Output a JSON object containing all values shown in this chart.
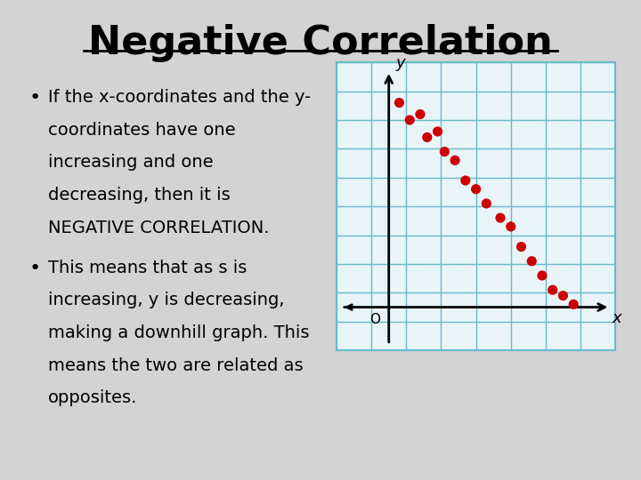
{
  "title": "Negative Correlation",
  "background_color": "#d3d3d3",
  "title_fontsize": 32,
  "bullet1_lines": [
    "If the x-coordinates and the y-",
    "coordinates have one",
    "increasing and one",
    "decreasing, then it is",
    "NEGATIVE CORRELATION."
  ],
  "bullet2_lines": [
    "This means that as s is",
    "increasing, y is decreasing,",
    "making a downhill graph. This",
    "means the two are related as",
    "opposites."
  ],
  "scatter_x": [
    1.8,
    2.1,
    2.4,
    2.6,
    2.9,
    3.1,
    3.4,
    3.7,
    4.0,
    4.3,
    4.7,
    5.0,
    5.3,
    5.6,
    5.9,
    6.2,
    6.5,
    6.8
  ],
  "scatter_y": [
    8.6,
    8.0,
    8.2,
    7.4,
    7.6,
    6.9,
    6.6,
    5.9,
    5.6,
    5.1,
    4.6,
    4.3,
    3.6,
    3.1,
    2.6,
    2.1,
    1.9,
    1.6
  ],
  "scatter_color": "#cc0000",
  "grid_color": "#66bbcc",
  "box_bg": "#e8f4f8"
}
